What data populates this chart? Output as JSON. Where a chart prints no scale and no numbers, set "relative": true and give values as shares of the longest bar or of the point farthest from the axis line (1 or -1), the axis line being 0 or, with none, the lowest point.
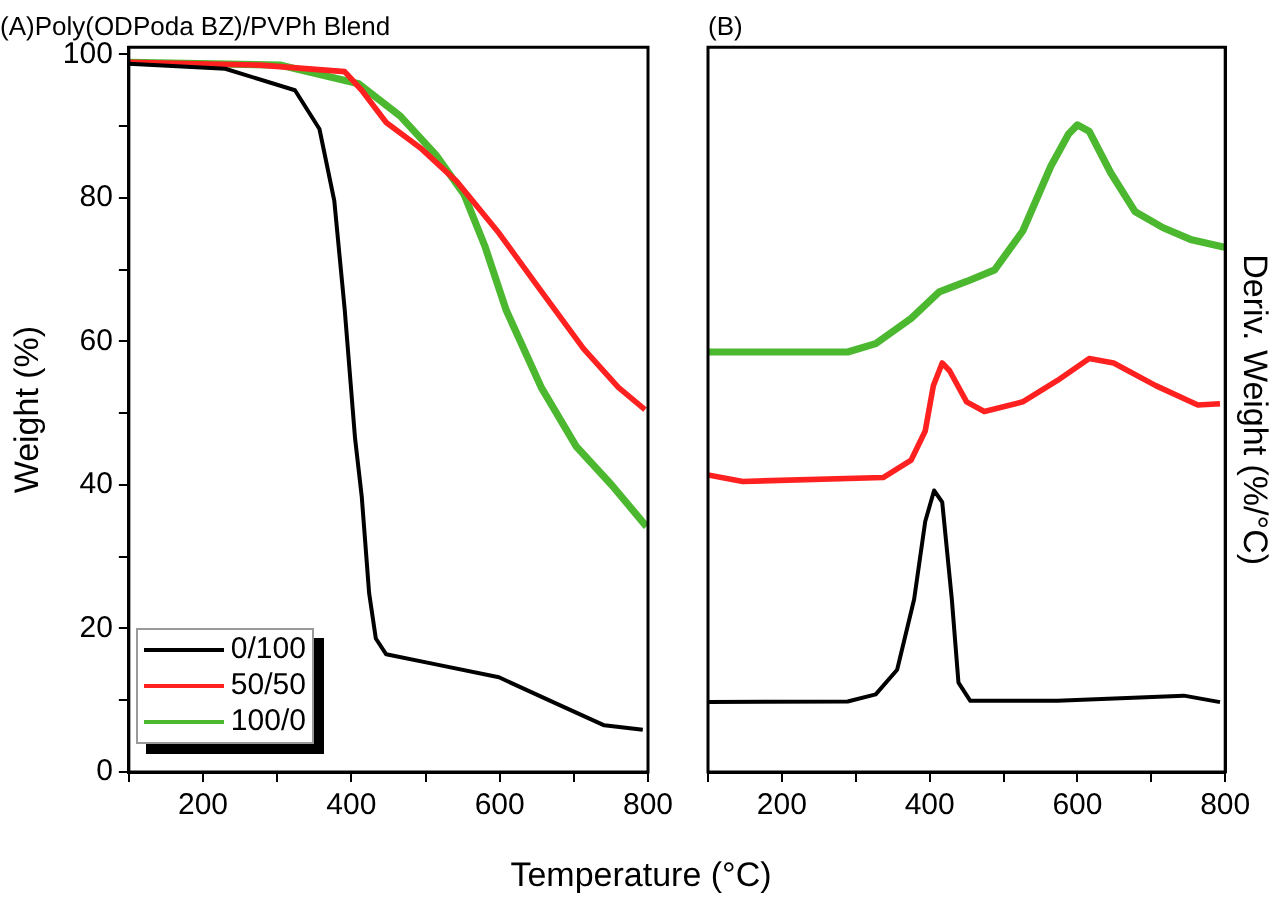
{
  "chart_data": [
    {
      "type": "line",
      "title": "(A)Poly(ODPoda BZ)/PVPh Blend",
      "xlabel": "Temperature (°C)",
      "ylabel": "Weight (%)",
      "xlim": [
        100,
        800
      ],
      "ylim": [
        0,
        101
      ],
      "xticks": [
        {
          "value": 100,
          "label": null
        },
        200,
        {
          "value": 300,
          "label": null
        },
        400,
        {
          "value": 500,
          "label": null
        },
        600,
        {
          "value": 700,
          "label": null
        },
        800
      ],
      "yticks": [
        0,
        {
          "value": 10,
          "label": null
        },
        20,
        {
          "value": 30,
          "label": null
        },
        40,
        {
          "value": 50,
          "label": null
        },
        60,
        {
          "value": 70,
          "label": null
        },
        80,
        {
          "value": 90,
          "label": null
        },
        100
      ],
      "legend": "bottom left",
      "series": [
        {
          "name": "0/100",
          "color": "#000000",
          "x": [
            100,
            230,
            324,
            357,
            377,
            391,
            405,
            414,
            424,
            433,
            447,
            514,
            599,
            675,
            741,
            793
          ],
          "values": [
            98.7,
            98.0,
            95.0,
            89.6,
            79.6,
            64.5,
            46.5,
            38.4,
            24.9,
            18.6,
            16.4,
            15.0,
            13.2,
            9.6,
            6.5,
            5.9
          ]
        },
        {
          "name": "50/50",
          "color": "#ff2020",
          "x": [
            100,
            277,
            391,
            414,
            447,
            495,
            542,
            599,
            656,
            713,
            760,
            796
          ],
          "values": [
            98.9,
            98.5,
            97.6,
            95.0,
            90.5,
            86.8,
            82.3,
            75.1,
            67.0,
            59.0,
            53.6,
            50.5
          ]
        },
        {
          "name": "100/0",
          "color": "#4cb830",
          "x": [
            100,
            305,
            410,
            466,
            514,
            552,
            580,
            609,
            656,
            703,
            751,
            798
          ],
          "values": [
            98.9,
            98.5,
            95.9,
            91.4,
            86.0,
            80.5,
            73.3,
            64.3,
            53.6,
            45.4,
            40.0,
            34.2
          ]
        }
      ]
    },
    {
      "type": "line",
      "title": "(B)",
      "y2label": "Deriv. Weight (%/°C)",
      "relative": true,
      "tick_labels": "x",
      "xlim": [
        100,
        800
      ],
      "xticks": [
        {
          "value": 100,
          "label": null
        },
        200,
        {
          "value": 300,
          "label": null
        },
        400,
        {
          "value": 500,
          "label": null
        },
        600,
        {
          "value": 700,
          "label": null
        },
        800
      ],
      "series": [
        {
          "color": "#000000",
          "x": [
            100,
            289,
            327,
            356,
            379,
            394,
            406,
            417,
            430,
            439,
            455,
            573,
            744,
            793
          ],
          "values": [
            0.108,
            0.109,
            0.12,
            0.158,
            0.267,
            0.387,
            0.435,
            0.417,
            0.267,
            0.138,
            0.11,
            0.11,
            0.118,
            0.108
          ]
        },
        {
          "color": "#ff2020",
          "x": [
            100,
            147,
            337,
            375,
            394,
            405,
            417,
            427,
            450,
            474,
            526,
            573,
            616,
            649,
            706,
            763,
            793
          ],
          "values": [
            0.459,
            0.449,
            0.455,
            0.482,
            0.527,
            0.597,
            0.632,
            0.62,
            0.572,
            0.557,
            0.572,
            0.605,
            0.639,
            0.632,
            0.597,
            0.567,
            0.569
          ]
        },
        {
          "color": "#4cb830",
          "x": [
            100,
            289,
            327,
            375,
            413,
            450,
            488,
            526,
            564,
            588,
            600,
            616,
            645,
            678,
            716,
            753,
            799
          ],
          "values": [
            0.649,
            0.649,
            0.662,
            0.701,
            0.742,
            0.758,
            0.776,
            0.836,
            0.936,
            0.986,
            1.0,
            0.99,
            0.926,
            0.866,
            0.841,
            0.823,
            0.811
          ]
        }
      ]
    }
  ]
}
